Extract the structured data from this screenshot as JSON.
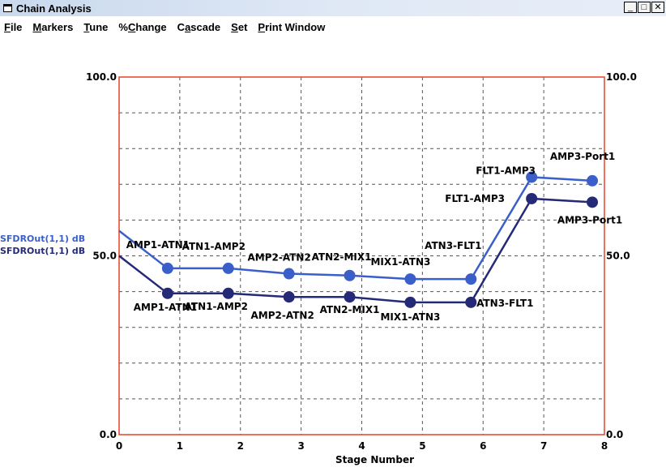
{
  "window": {
    "title": "Chain Analysis",
    "controls": {
      "minimize": "_",
      "maximize": "□",
      "close": "✕"
    }
  },
  "menu": [
    {
      "label": "File",
      "mnemonic": 0
    },
    {
      "label": "Markers",
      "mnemonic": 0
    },
    {
      "label": "Tune",
      "mnemonic": 0
    },
    {
      "label": "%Change",
      "mnemonic": 1
    },
    {
      "label": "Cascade",
      "mnemonic": 1
    },
    {
      "label": "Set",
      "mnemonic": 0
    },
    {
      "label": "Print Window",
      "mnemonic": 0
    }
  ],
  "icons": {
    "app": "window-icon"
  },
  "colors": {
    "series_light": "#3a5fc8",
    "series_dark": "#252a78",
    "axis_frame": "#e8402a",
    "grid": "#555555",
    "label_text": "#000000"
  },
  "chart_data": {
    "type": "line",
    "xlabel": "Stage Number",
    "ylabel_left": [
      "SFDROut(1,1) dB",
      "SFDROut(1,1) dB"
    ],
    "ylim": [
      0,
      100
    ],
    "xlim": [
      0,
      8
    ],
    "grid": true,
    "x_ticks": [
      "0",
      "1",
      "2",
      "3",
      "4",
      "5",
      "6",
      "7",
      "8"
    ],
    "y_ticks_left": [
      "100.0",
      "50.0",
      "0.0"
    ],
    "y_ticks_right": [
      "100.0",
      "50.0",
      "0.0"
    ],
    "series": [
      {
        "color_key": "series_light",
        "x": [
          0,
          0.8,
          1.8,
          2.8,
          3.8,
          4.8,
          5.8,
          6.8,
          7.8
        ],
        "y": [
          57,
          46.5,
          46.5,
          45,
          44.5,
          43.5,
          43.5,
          72,
          71
        ],
        "points": [
          {
            "x": 0.8,
            "y": 46.5,
            "label": "AMP1-ATN1"
          },
          {
            "x": 1.8,
            "y": 46.5,
            "label": "ATN1-AMP2"
          },
          {
            "x": 2.8,
            "y": 45,
            "label": "AMP2-ATN2"
          },
          {
            "x": 3.8,
            "y": 44.5,
            "label": "ATN2-MIX1"
          },
          {
            "x": 4.8,
            "y": 43.5,
            "label": "MIX1-ATN3"
          },
          {
            "x": 5.8,
            "y": 43.5,
            "label": "ATN3-FLT1"
          },
          {
            "x": 6.8,
            "y": 72,
            "label": "FLT1-AMP3"
          },
          {
            "x": 7.8,
            "y": 71,
            "label": "AMP3-Port1"
          }
        ]
      },
      {
        "color_key": "series_dark",
        "x": [
          0,
          0.8,
          1.8,
          2.8,
          3.8,
          4.8,
          5.8,
          6.8,
          7.8
        ],
        "y": [
          50,
          39.5,
          39.5,
          38.5,
          38.5,
          37,
          37,
          66,
          65
        ],
        "points": [
          {
            "x": 0.8,
            "y": 39.5,
            "label": "AMP1-ATN1"
          },
          {
            "x": 1.8,
            "y": 39.5,
            "label": "ATN1-AMP2"
          },
          {
            "x": 2.8,
            "y": 38.5,
            "label": "AMP2-ATN2"
          },
          {
            "x": 3.8,
            "y": 38.5,
            "label": "ATN2-MIX1"
          },
          {
            "x": 4.8,
            "y": 37,
            "label": "MIX1-ATN3"
          },
          {
            "x": 5.8,
            "y": 37,
            "label": "ATN3-FLT1"
          },
          {
            "x": 6.8,
            "y": 66,
            "label": "FLT1-AMP3"
          },
          {
            "x": 7.8,
            "y": 65,
            "label": "AMP3-Port1"
          }
        ]
      }
    ]
  }
}
